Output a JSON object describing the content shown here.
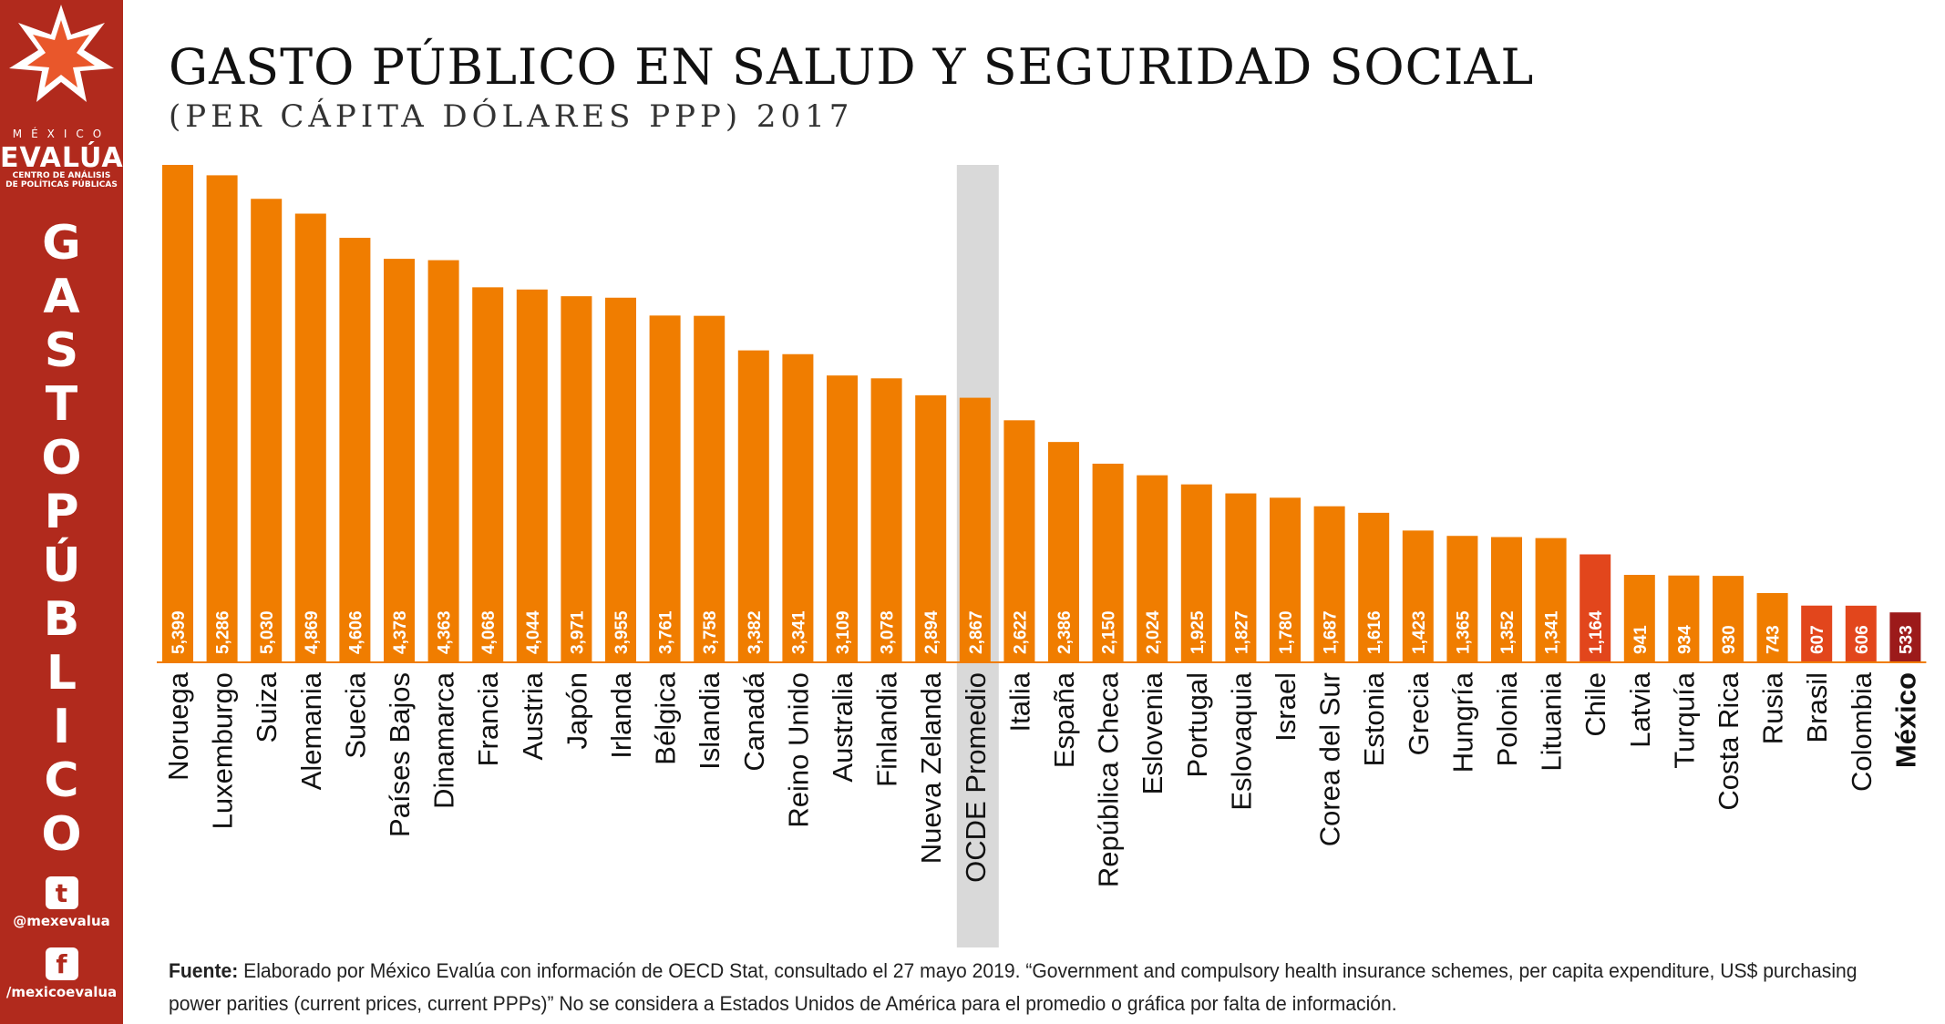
{
  "header": {
    "title": "GASTO PÚBLICO EN SALUD Y SEGURIDAD SOCIAL",
    "subtitle": "(PER CÁPITA DÓLARES PPP) 2017"
  },
  "sidebar": {
    "brand_top": "MÉXICO",
    "brand_main": "EVALÚA",
    "brand_sub_1": "CENTRO DE ANÁLISIS",
    "brand_sub_2": "DE POLÍTICAS PÚBLICAS",
    "vertical_letters": [
      "G",
      "A",
      "S",
      "T",
      "O",
      "P",
      "Ú",
      "B",
      "L",
      "I",
      "C",
      "O"
    ],
    "twitter_handle": "@mexevalua",
    "facebook_handle": "/mexicoevalua",
    "logo_icon": "star-burst-icon",
    "twitter_icon": "twitter-icon",
    "facebook_icon": "facebook-icon"
  },
  "footer": {
    "source_label": "Fuente:",
    "source_text": "Elaborado por México Evalúa con información de OECD Stat, consultado el 27 mayo 2019. “Government and compulsory health insurance schemes, per capita expenditure, US$ purchasing power parities (current prices, current PPPs)” No se considera a Estados Unidos de América para el promedio o gráfica por falta de información."
  },
  "colors": {
    "sidebar": "#b12a1d",
    "bar_default": "#f07d00",
    "bar_latam": "#e2461c",
    "bar_mexico": "#9c1a1a",
    "highlight_band": "#d9d9d9"
  },
  "chart_data": {
    "type": "bar",
    "title": "GASTO PÚBLICO EN SALUD Y SEGURIDAD SOCIAL",
    "subtitle": "(PER CÁPITA DÓLARES PPP) 2017",
    "xlabel": "",
    "ylabel": "",
    "ylim": [
      0,
      5399
    ],
    "grid": false,
    "legend": "none",
    "highlighted_category": "OCDE Promedio",
    "categories": [
      "Noruega",
      "Luxemburgo",
      "Suiza",
      "Alemania",
      "Suecia",
      "Países Bajos",
      "Dinamarca",
      "Francia",
      "Austria",
      "Japón",
      "Irlanda",
      "Bélgica",
      "Islandia",
      "Canadá",
      "Reino Unido",
      "Australia",
      "Finlandia",
      "Nueva Zelanda",
      "OCDE Promedio",
      "Italia",
      "España",
      "República Checa",
      "Eslovenia",
      "Portugal",
      "Eslovaquia",
      "Israel",
      "Corea del Sur",
      "Estonia",
      "Grecia",
      "Hungría",
      "Polonia",
      "Lituania",
      "Chile",
      "Latvia",
      "Turquía",
      "Costa Rica",
      "Rusia",
      "Brasil",
      "Colombia",
      "México"
    ],
    "values": [
      5399,
      5286,
      5030,
      4869,
      4606,
      4378,
      4363,
      4068,
      4044,
      3971,
      3955,
      3761,
      3758,
      3382,
      3341,
      3109,
      3078,
      2894,
      2867,
      2622,
      2386,
      2150,
      2024,
      1925,
      1827,
      1780,
      1687,
      1616,
      1423,
      1365,
      1352,
      1341,
      1164,
      941,
      934,
      930,
      743,
      607,
      606,
      533
    ],
    "value_labels": [
      "5,399",
      "5,286",
      "5,030",
      "4,869",
      "4,606",
      "4,378",
      "4,363",
      "4,068",
      "4,044",
      "3,971",
      "3,955",
      "3,761",
      "3,758",
      "3,382",
      "3,341",
      "3,109",
      "3,078",
      "2,894",
      "2,867",
      "2,622",
      "2,386",
      "2,150",
      "2,024",
      "1,925",
      "1,827",
      "1,780",
      "1,687",
      "1,616",
      "1,423",
      "1,365",
      "1,352",
      "1,341",
      "1,164",
      "941",
      "934",
      "930",
      "743",
      "607",
      "606",
      "533"
    ],
    "bar_color_groups": [
      "default",
      "default",
      "default",
      "default",
      "default",
      "default",
      "default",
      "default",
      "default",
      "default",
      "default",
      "default",
      "default",
      "default",
      "default",
      "default",
      "default",
      "default",
      "default",
      "default",
      "default",
      "default",
      "default",
      "default",
      "default",
      "default",
      "default",
      "default",
      "default",
      "default",
      "default",
      "default",
      "latam",
      "default",
      "default",
      "default",
      "default",
      "latam",
      "latam",
      "mexico"
    ]
  }
}
